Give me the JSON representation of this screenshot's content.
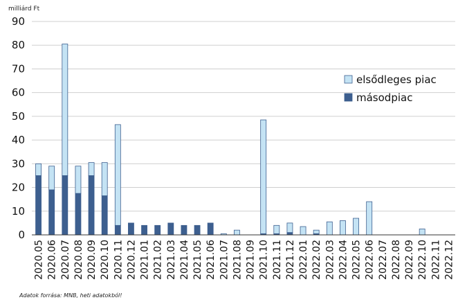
{
  "chart_data": {
    "type": "bar",
    "stacked": true,
    "unit_label": "milliárd Ft",
    "ylim": [
      0,
      90
    ],
    "yticks": [
      0,
      10,
      20,
      30,
      40,
      50,
      60,
      70,
      80,
      90
    ],
    "grid": true,
    "legend_position": "right",
    "categories": [
      "2020.05",
      "2020.06",
      "2020.07",
      "2020.08",
      "2020.09",
      "2020.10",
      "2020.11",
      "2020.12",
      "2021.01",
      "2021.02",
      "2021.03",
      "2021.04",
      "2021.05",
      "2021.06",
      "2021.07",
      "2021.08",
      "2021.09",
      "2021.10",
      "2021.11",
      "2021.12",
      "2022.01",
      "2022.02",
      "2022.03",
      "2022.04",
      "2022.05",
      "2022.06",
      "2022.07",
      "2022.08",
      "2022.09",
      "2022.10",
      "2022.11",
      "2022.12"
    ],
    "series": [
      {
        "name": "másodpiac",
        "color": "#3d5f8f",
        "values": [
          25,
          19,
          25,
          17.5,
          25,
          16.5,
          4,
          5,
          4,
          4,
          5,
          4,
          4,
          5,
          0,
          0,
          0,
          0.5,
          0.5,
          1,
          0,
          0.5,
          0,
          0,
          0,
          0,
          0,
          0,
          0,
          0,
          0,
          0
        ]
      },
      {
        "name": "elsődleges piac",
        "color": "#c4e3f4",
        "values": [
          5,
          10,
          55.5,
          11.5,
          5.5,
          14,
          42.5,
          0,
          0,
          0,
          0,
          0,
          0,
          0,
          0.5,
          2,
          0,
          48,
          3.5,
          4,
          3.5,
          1.5,
          5.5,
          6,
          7,
          14,
          0,
          0,
          0,
          2.5,
          0,
          0
        ]
      }
    ],
    "legend": [
      {
        "label": "elsődleges piac",
        "color": "#c4e3f4"
      },
      {
        "label": "másodpiac",
        "color": "#3d5f8f"
      }
    ],
    "source_note": "Adatok forrása: MNB, heti adatokból!"
  }
}
